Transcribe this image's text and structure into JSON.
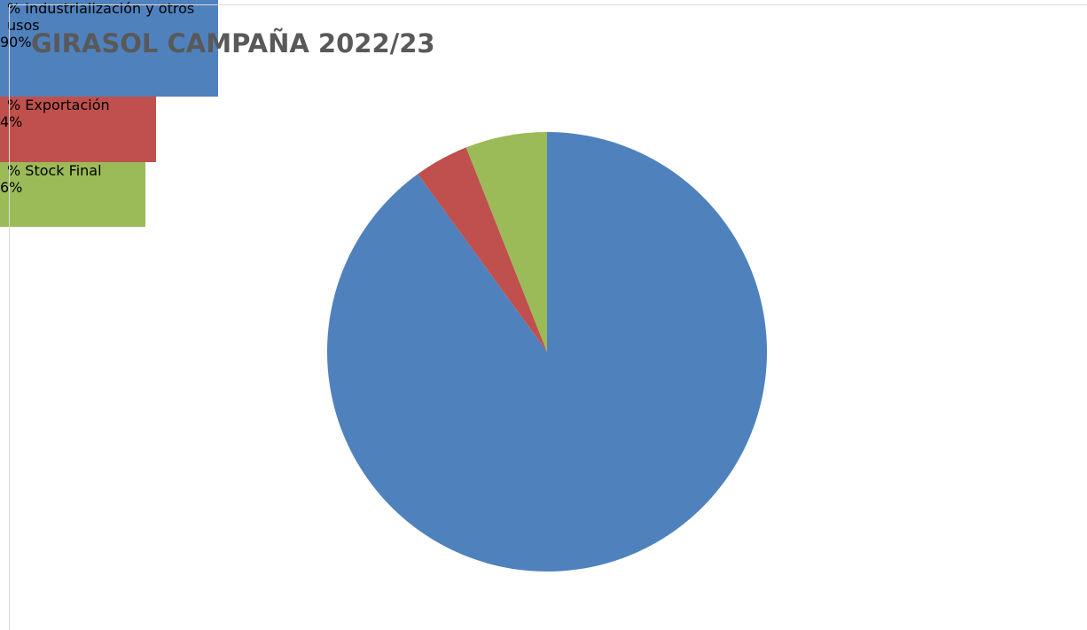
{
  "chart_data": {
    "type": "pie",
    "title": "GIRASOL CAMPAÑA 2022/23",
    "categories": [
      "% Industrialización y otros usos",
      "% Exportación",
      "% Stock Final"
    ],
    "values": [
      90,
      4,
      6
    ],
    "value_labels": [
      "90%",
      "4%",
      "6%"
    ],
    "colors": [
      "#4f81bd",
      "#c0504d",
      "#9bbb59"
    ]
  }
}
